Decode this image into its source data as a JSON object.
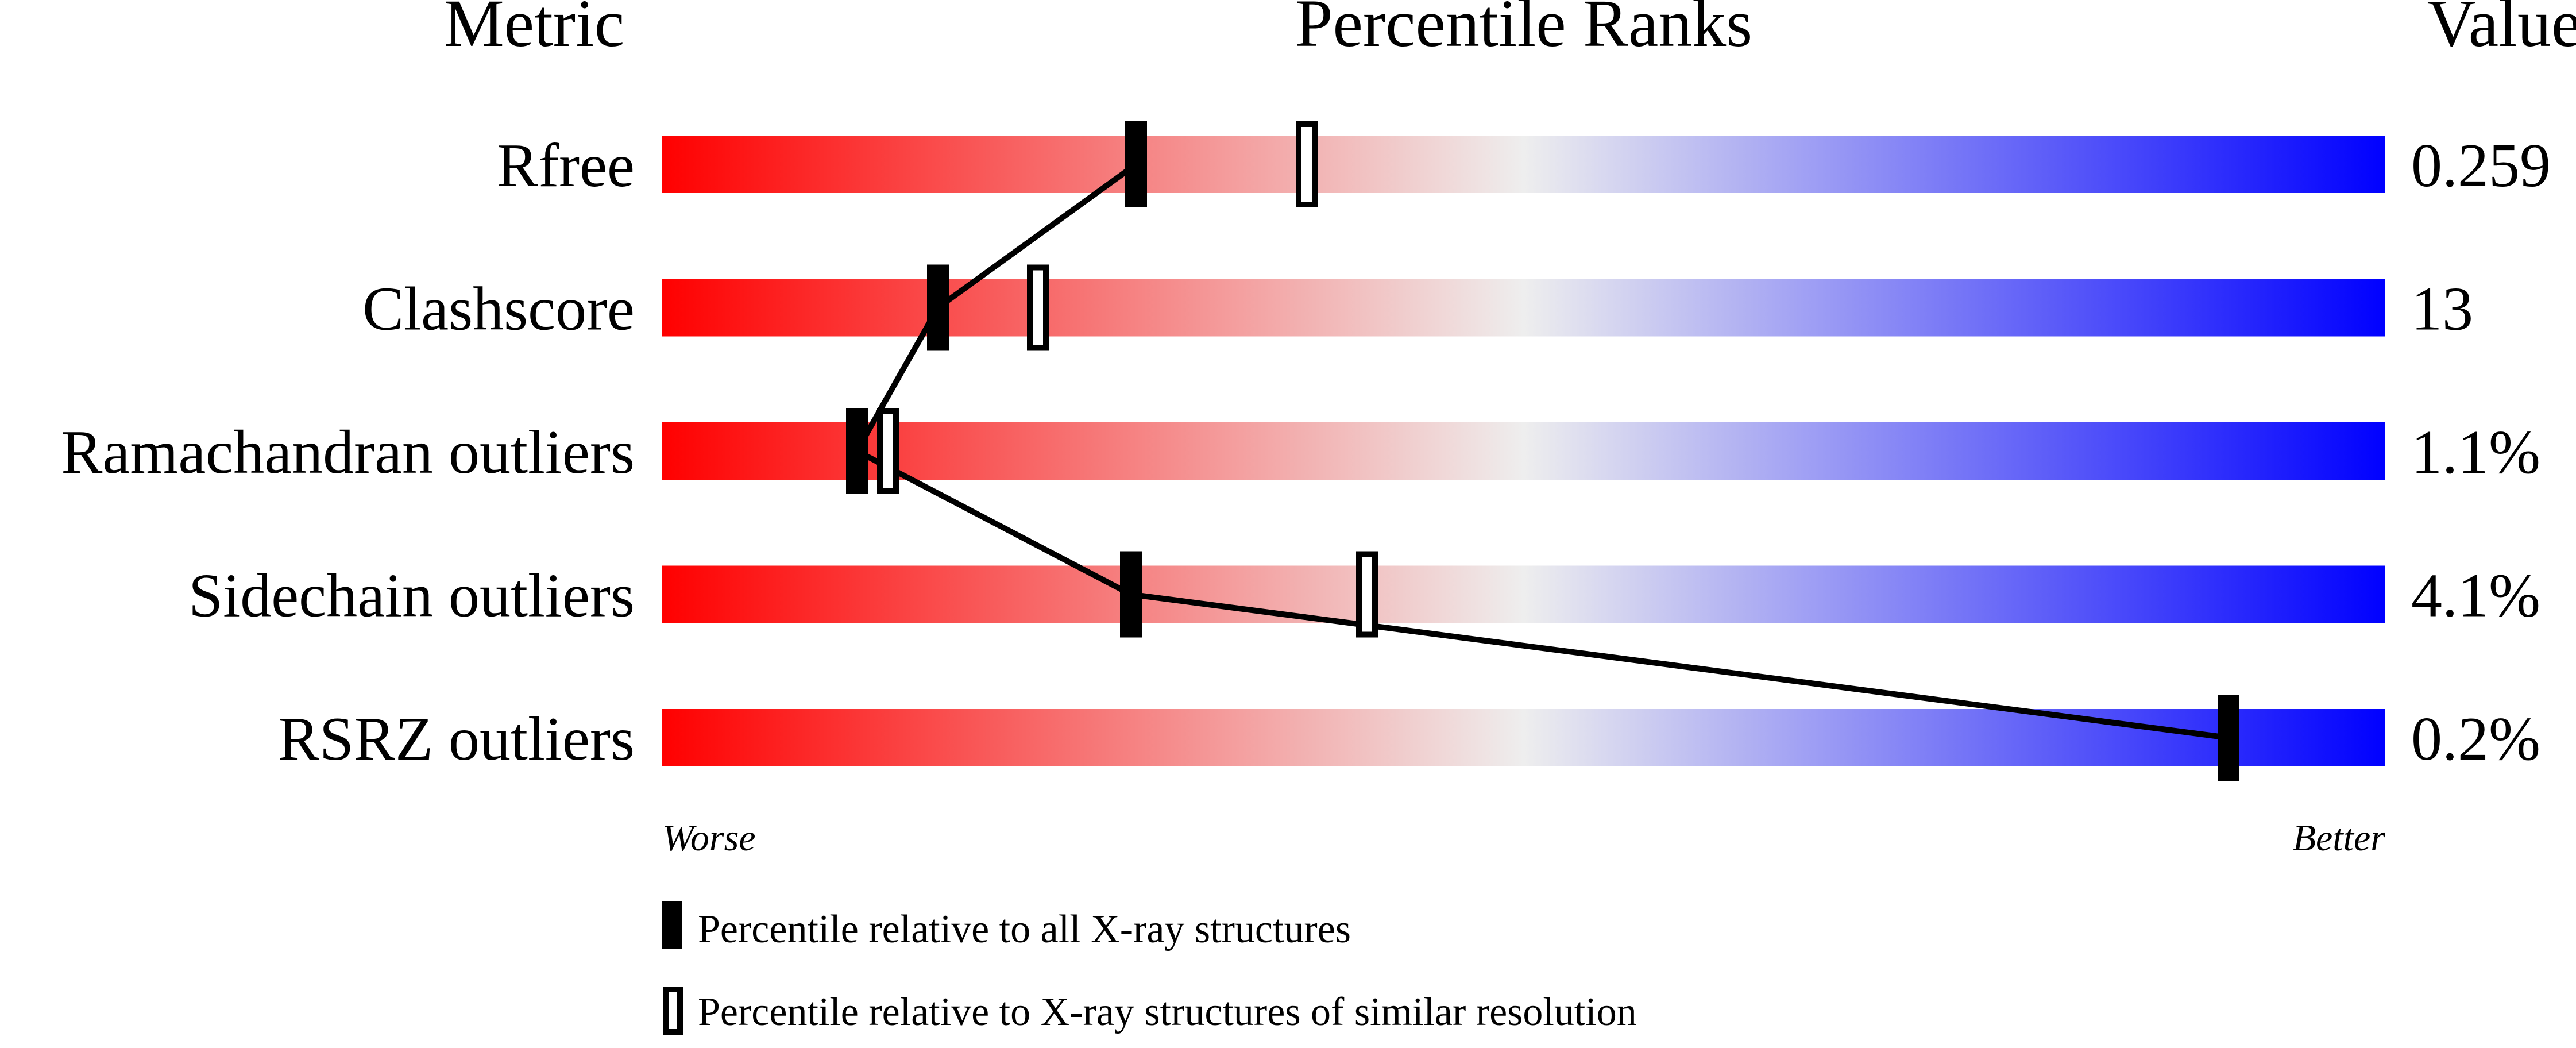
{
  "chart_data": {
    "type": "percentile-slider",
    "headers": {
      "metric": "Metric",
      "ranks": "Percentile Ranks",
      "value": "Value"
    },
    "xlim": [
      0,
      100
    ],
    "rows": [
      {
        "metric": "Rfree",
        "value": "0.259",
        "percentile_all": 27.5,
        "percentile_similar": 37.4
      },
      {
        "metric": "Clashscore",
        "value": "13",
        "percentile_all": 16.0,
        "percentile_similar": 21.8
      },
      {
        "metric": "Ramachandran outliers",
        "value": "1.1%",
        "percentile_all": 11.3,
        "percentile_similar": 13.1
      },
      {
        "metric": "Sidechain outliers",
        "value": "4.1%",
        "percentile_all": 27.2,
        "percentile_similar": 40.9
      },
      {
        "metric": "RSRZ outliers",
        "value": "0.2%",
        "percentile_all": 90.9,
        "percentile_similar": null
      }
    ],
    "axis_labels": {
      "left": "Worse",
      "right": "Better"
    },
    "legend": [
      {
        "marker": "filled",
        "label": "Percentile relative to all X-ray structures"
      },
      {
        "marker": "open",
        "label": "Percentile relative to X-ray structures of similar resolution"
      }
    ],
    "colors": {
      "worse": "#ff0000",
      "middle": "#eeeeee",
      "better": "#0000ff"
    }
  }
}
